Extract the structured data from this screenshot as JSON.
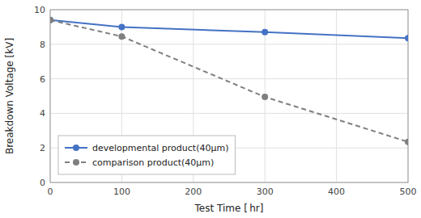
{
  "chart_data": {
    "type": "line",
    "xlabel": "Test Time [ hr]",
    "ylabel": "Breakdown Voltage [kV]",
    "x": [
      0,
      100,
      300,
      500
    ],
    "series": [
      {
        "name": "developmental product(40μm)",
        "color": "#4472c4",
        "values": [
          9.4,
          9.0,
          8.7,
          8.35
        ],
        "line_style": "solid",
        "marker": "circle"
      },
      {
        "name": "comparison product(40μm)",
        "color": "#7f7f7f",
        "values": [
          9.4,
          8.45,
          4.95,
          2.35
        ],
        "line_style": "dashed",
        "marker": "circle"
      }
    ],
    "xlim": [
      0,
      500
    ],
    "ylim": [
      0,
      10
    ],
    "xticks": [
      0,
      100,
      200,
      300,
      400,
      500
    ],
    "yticks": [
      0,
      2,
      4,
      6,
      8,
      10
    ],
    "grid": true,
    "legend": "lower left"
  }
}
